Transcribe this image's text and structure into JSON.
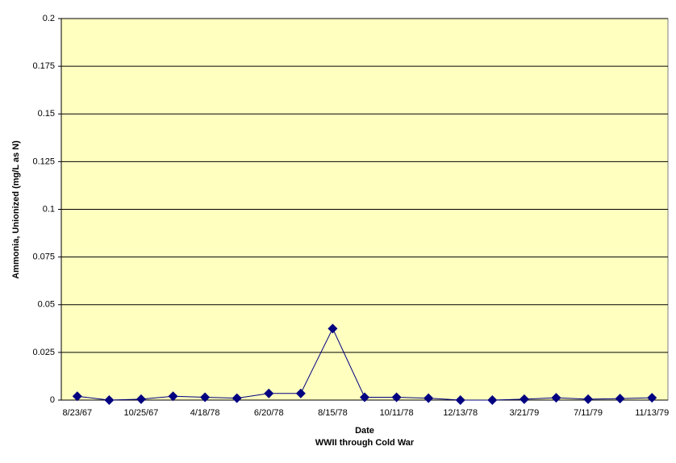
{
  "chart_data": {
    "type": "line",
    "y_label": "Ammonia, Unionized (mg/L as N)",
    "x_label": "Date",
    "subtitle": "WWII through Cold War",
    "categories": [
      "8/23/67",
      null,
      "10/25/67",
      null,
      "4/18/78",
      null,
      "6/20/78",
      null,
      "8/15/78",
      null,
      "10/11/78",
      null,
      "12/13/78",
      null,
      "3/21/79",
      null,
      "7/11/79",
      null,
      "11/13/79"
    ],
    "series": [
      {
        "name": "Ammonia, Unionized",
        "color": "#000080",
        "values": [
          0.002,
          0,
          0.0005,
          0.002,
          0.0015,
          0.001,
          0.0035,
          0.0035,
          0.0375,
          0.0015,
          0.0015,
          0.001,
          0,
          0,
          0.0005,
          0.0012,
          0.0005,
          0.0008,
          0.0012
        ]
      }
    ],
    "ylim": [
      0,
      0.2
    ],
    "yticks": [
      0,
      0.025,
      0.05,
      0.075,
      0.1,
      0.125,
      0.15,
      0.175,
      0.2
    ],
    "grid": true,
    "background": "#ffffc0"
  }
}
